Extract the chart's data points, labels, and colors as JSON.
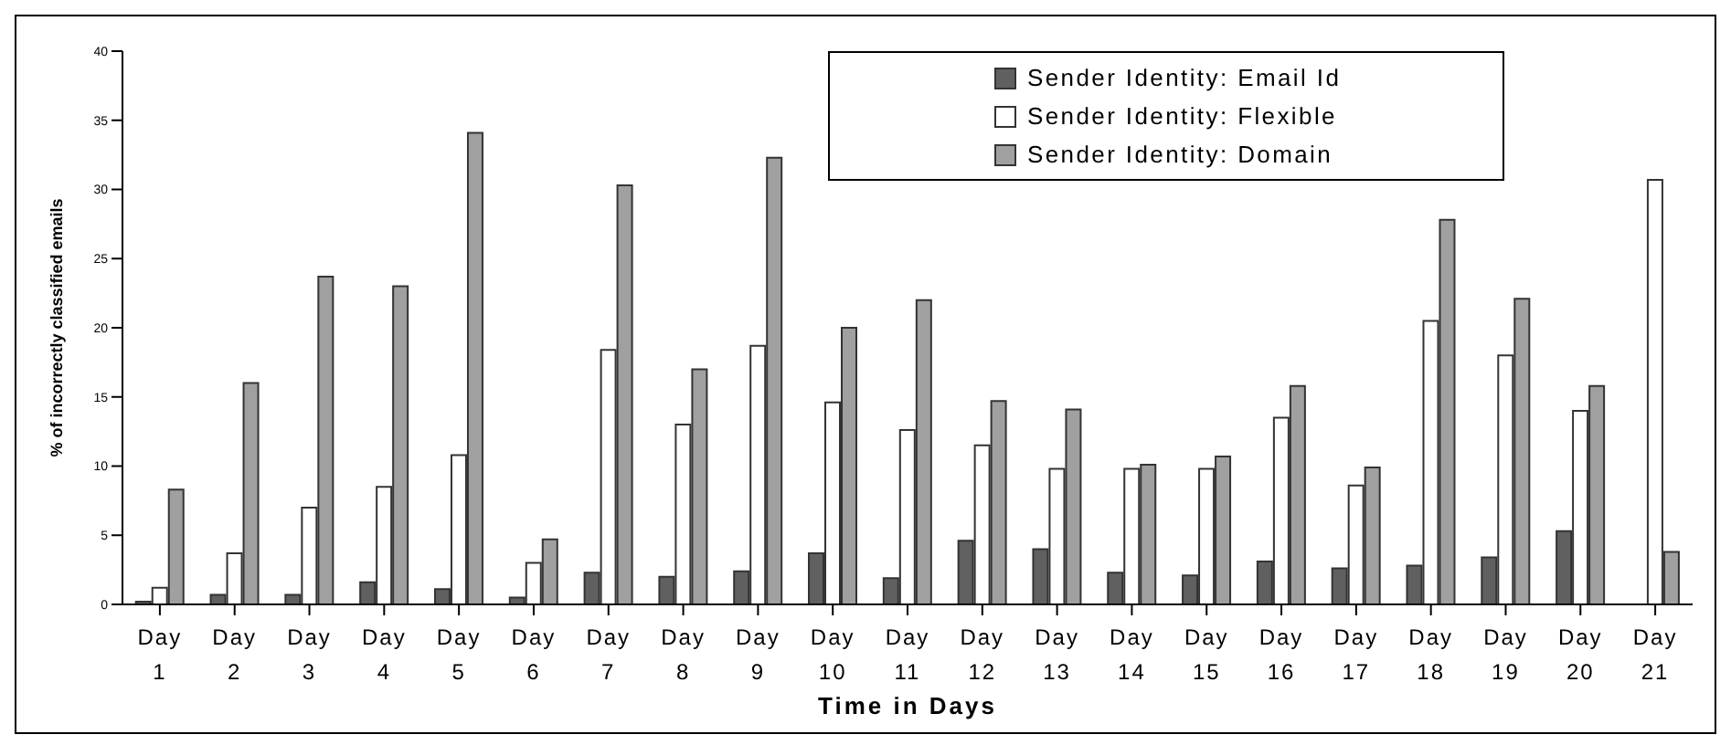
{
  "chart_data": {
    "type": "bar",
    "xlabel": "Time in Days",
    "ylabel": "% of incorrectly classified emails",
    "categories": [
      "Day 1",
      "Day 2",
      "Day 3",
      "Day 4",
      "Day 5",
      "Day 6",
      "Day 7",
      "Day 8",
      "Day 9",
      "Day 10",
      "Day 11",
      "Day 12",
      "Day 13",
      "Day 14",
      "Day 15",
      "Day 16",
      "Day 17",
      "Day 18",
      "Day 19",
      "Day 20",
      "Day 21"
    ],
    "series": [
      {
        "name": "Sender Identity: Email Id",
        "color": "#606060",
        "values": [
          0.2,
          0.7,
          0.7,
          1.6,
          1.1,
          0.5,
          2.3,
          2.0,
          2.4,
          3.7,
          1.9,
          4.6,
          4.0,
          2.3,
          2.1,
          3.1,
          2.6,
          2.8,
          3.4,
          5.3,
          0
        ]
      },
      {
        "name": "Sender Identity: Flexible",
        "color": "#ffffff",
        "values": [
          1.2,
          3.7,
          7.0,
          8.5,
          10.8,
          3.0,
          18.4,
          13.0,
          18.7,
          14.6,
          12.6,
          11.5,
          9.8,
          9.8,
          9.8,
          13.5,
          8.6,
          20.5,
          18.0,
          14.0,
          30.7
        ]
      },
      {
        "name": "Sender Identity: Domain",
        "color": "#a0a0a0",
        "values": [
          8.3,
          16.0,
          23.7,
          23.0,
          34.1,
          4.7,
          30.3,
          17.0,
          32.3,
          20.0,
          22.0,
          14.7,
          14.1,
          10.1,
          10.7,
          15.8,
          9.9,
          27.8,
          22.1,
          15.8,
          3.8
        ]
      }
    ],
    "ylim": [
      0,
      40
    ],
    "yticks": [
      0,
      5,
      10,
      15,
      20,
      25,
      30,
      35,
      40
    ],
    "grid": false,
    "legend": "top right"
  }
}
